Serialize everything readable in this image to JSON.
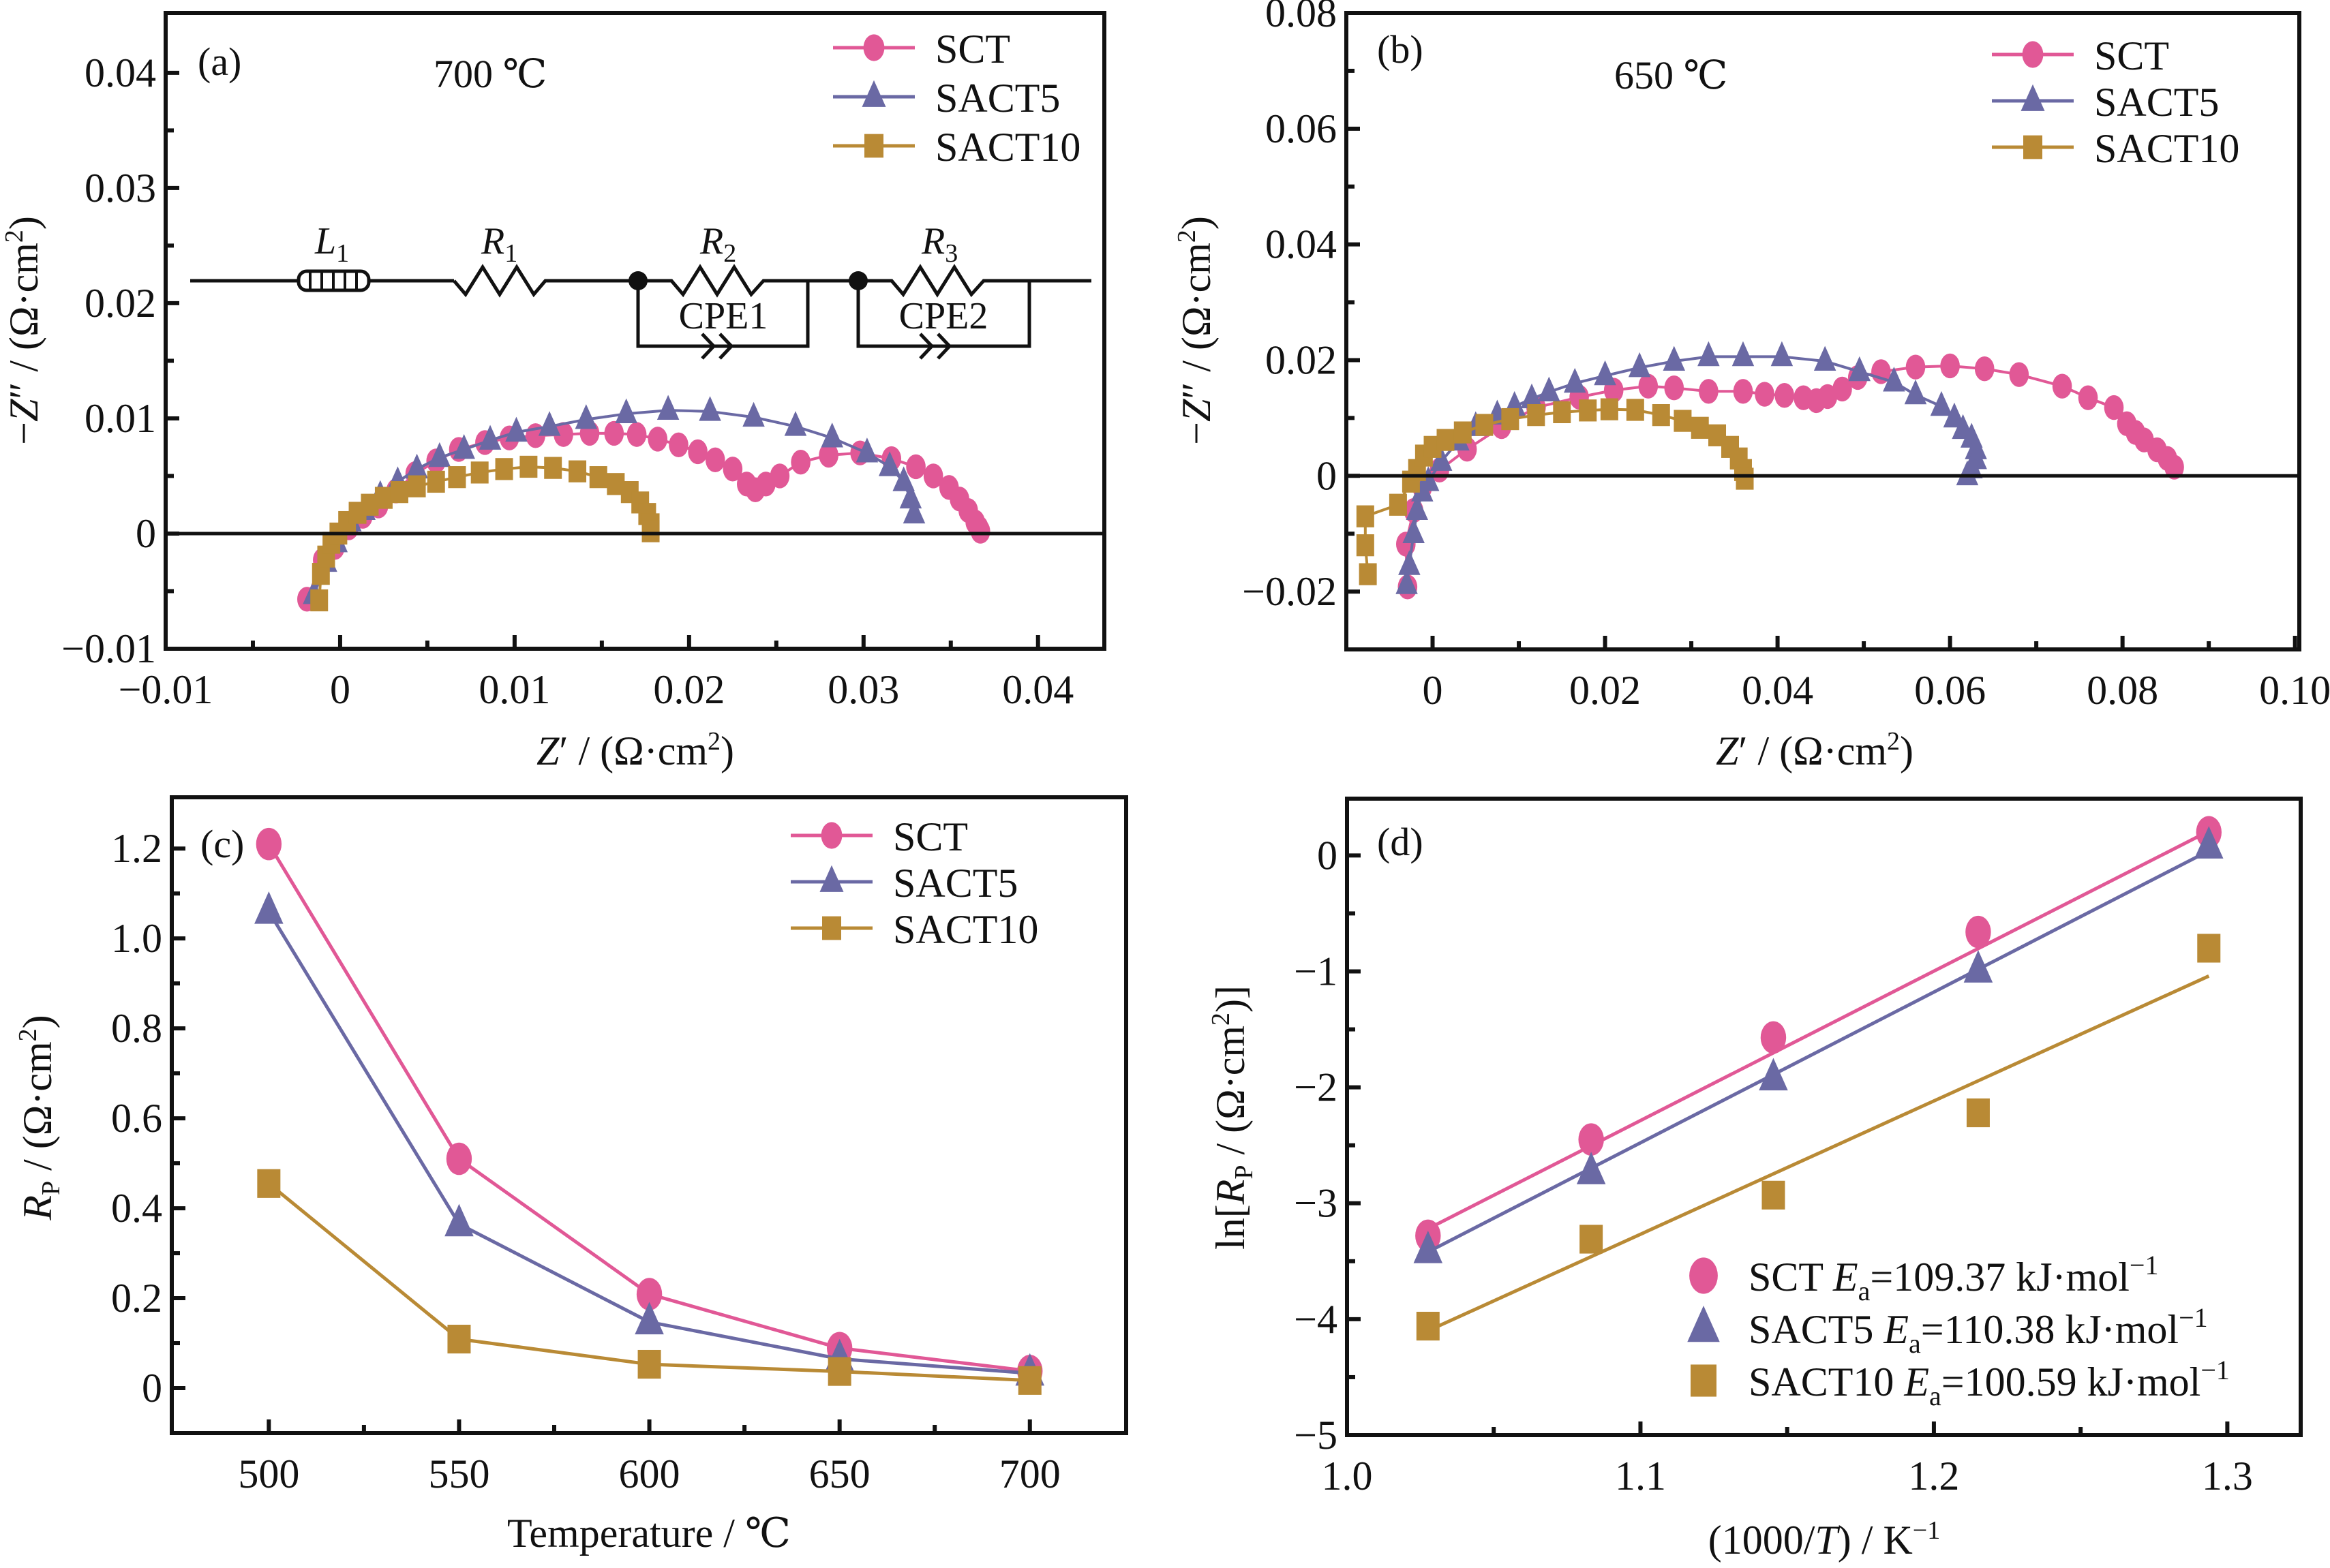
{
  "figure": {
    "background": "#ffffff",
    "series_colors": {
      "SCT": "#E15896",
      "SACT5": "#6A69A4",
      "SACT10": "#B98A35"
    },
    "series_markers": {
      "SCT": "circle",
      "SACT5": "triangle",
      "SACT10": "square"
    }
  },
  "chart_data": [
    {
      "id": "a",
      "type": "scatter",
      "panel_label": "(a)",
      "annotation": "700 ℃",
      "xlabel": "Z′ / (Ω·cm²)",
      "ylabel": "−Z″ / (Ω·cm²)",
      "xlim": [
        -0.01,
        0.0438
      ],
      "ylim": [
        -0.01,
        0.0452
      ],
      "xticks": [
        -0.01,
        0,
        0.01,
        0.02,
        0.03,
        0.04
      ],
      "xtick_labels": [
        "−0.01",
        "0",
        "0.01",
        "0.02",
        "0.03",
        "0.04"
      ],
      "yticks": [
        -0.01,
        0,
        0.01,
        0.02,
        0.03,
        0.04
      ],
      "ytick_labels": [
        "−0.01",
        "0",
        "0.01",
        "0.02",
        "0.03",
        "0.04"
      ],
      "zero_line": true,
      "grid": false,
      "legend_position": "top-right",
      "legend_style": "line-marker",
      "inset_circuit": {
        "elements": [
          "L1",
          "R1",
          "R2",
          "CPE1",
          "R3",
          "CPE2"
        ],
        "labels": {
          "L1": "L",
          "L1_sub": "1",
          "R1": "R",
          "R1_sub": "1",
          "R2": "R",
          "R2_sub": "2",
          "R3": "R",
          "R3_sub": "3",
          "CPE1": "CPE1",
          "CPE2": "CPE2"
        },
        "topology": "L1 – R1 – (R2 ∥ CPE1) – (R3 ∥ CPE2)"
      },
      "series": [
        {
          "name": "SCT",
          "connected": true,
          "points": [
            [
              -0.0019,
              -0.0057
            ],
            [
              -0.001,
              -0.0023
            ],
            [
              -0.0003,
              -0.0012
            ],
            [
              0.0005,
              0.0005
            ],
            [
              0.0013,
              0.0015
            ],
            [
              0.0022,
              0.0024
            ],
            [
              0.0032,
              0.0037
            ],
            [
              0.0043,
              0.0052
            ],
            [
              0.0055,
              0.0063
            ],
            [
              0.0068,
              0.0073
            ],
            [
              0.0083,
              0.0079
            ],
            [
              0.0097,
              0.0083
            ],
            [
              0.0112,
              0.0085
            ],
            [
              0.0128,
              0.0086
            ],
            [
              0.0143,
              0.0087
            ],
            [
              0.0157,
              0.0087
            ],
            [
              0.017,
              0.0086
            ],
            [
              0.0182,
              0.0082
            ],
            [
              0.0194,
              0.0077
            ],
            [
              0.0205,
              0.0071
            ],
            [
              0.0215,
              0.0064
            ],
            [
              0.0225,
              0.0056
            ],
            [
              0.0233,
              0.0043
            ],
            [
              0.0238,
              0.0038
            ],
            [
              0.0244,
              0.0043
            ],
            [
              0.0252,
              0.005
            ],
            [
              0.0264,
              0.0062
            ],
            [
              0.028,
              0.0068
            ],
            [
              0.0298,
              0.007
            ],
            [
              0.0316,
              0.0065
            ],
            [
              0.033,
              0.0058
            ],
            [
              0.034,
              0.005
            ],
            [
              0.0349,
              0.004
            ],
            [
              0.0355,
              0.003
            ],
            [
              0.036,
              0.002
            ],
            [
              0.0364,
              0.001
            ],
            [
              0.0366,
              0.0005
            ],
            [
              0.0367,
              0.0002
            ]
          ]
        },
        {
          "name": "SACT5",
          "connected": true,
          "points": [
            [
              -0.0015,
              -0.0053
            ],
            [
              -0.0008,
              -0.0025
            ],
            [
              -0.0002,
              -0.0008
            ],
            [
              0.0006,
              0.001
            ],
            [
              0.0014,
              0.002
            ],
            [
              0.0023,
              0.0033
            ],
            [
              0.0033,
              0.0045
            ],
            [
              0.0044,
              0.0056
            ],
            [
              0.0057,
              0.0066
            ],
            [
              0.0071,
              0.0073
            ],
            [
              0.0086,
              0.0081
            ],
            [
              0.0101,
              0.0088
            ],
            [
              0.012,
              0.0093
            ],
            [
              0.0141,
              0.0099
            ],
            [
              0.0164,
              0.0104
            ],
            [
              0.0188,
              0.0107
            ],
            [
              0.0212,
              0.0106
            ],
            [
              0.0237,
              0.0101
            ],
            [
              0.0261,
              0.0093
            ],
            [
              0.0282,
              0.0083
            ],
            [
              0.0302,
              0.007
            ],
            [
              0.0315,
              0.0058
            ],
            [
              0.0323,
              0.0045
            ],
            [
              0.0327,
              0.003
            ],
            [
              0.0329,
              0.0017
            ]
          ]
        },
        {
          "name": "SACT10",
          "connected": true,
          "points": [
            [
              -0.0012,
              -0.0058
            ],
            [
              -0.0011,
              -0.0035
            ],
            [
              -0.0008,
              -0.002
            ],
            [
              -0.0005,
              -0.0008
            ],
            [
              -0.0001,
              0.0
            ],
            [
              0.0004,
              0.001
            ],
            [
              0.001,
              0.0018
            ],
            [
              0.0017,
              0.0025
            ],
            [
              0.0025,
              0.0031
            ],
            [
              0.0034,
              0.0036
            ],
            [
              0.0044,
              0.0041
            ],
            [
              0.0055,
              0.0045
            ],
            [
              0.0067,
              0.0049
            ],
            [
              0.008,
              0.0053
            ],
            [
              0.0094,
              0.0056
            ],
            [
              0.0108,
              0.0058
            ],
            [
              0.0122,
              0.0057
            ],
            [
              0.0136,
              0.0054
            ],
            [
              0.0148,
              0.0049
            ],
            [
              0.0158,
              0.0043
            ],
            [
              0.0166,
              0.0036
            ],
            [
              0.0172,
              0.0027
            ],
            [
              0.0176,
              0.0017
            ],
            [
              0.0178,
              0.0008
            ],
            [
              0.0178,
              0.0002
            ]
          ]
        }
      ]
    },
    {
      "id": "b",
      "type": "scatter",
      "panel_label": "(b)",
      "annotation": "650 ℃",
      "xlabel": "Z′ / (Ω·cm²)",
      "ylabel": "−Z″ / (Ω·cm²)",
      "xlim": [
        -0.01,
        0.1005
      ],
      "ylim": [
        -0.03,
        0.08
      ],
      "xticks": [
        0,
        0.02,
        0.04,
        0.06,
        0.08,
        0.1
      ],
      "xtick_labels": [
        "0",
        "0.02",
        "0.04",
        "0.06",
        "0.08",
        "0.10"
      ],
      "yticks": [
        -0.02,
        0,
        0.02,
        0.04,
        0.06,
        0.08
      ],
      "ytick_labels": [
        "−0.02",
        "0",
        "0.02",
        "0.04",
        "0.06",
        "0.08"
      ],
      "zero_line": true,
      "grid": false,
      "legend_position": "top-right",
      "legend_style": "line-marker",
      "series": [
        {
          "name": "SCT",
          "connected": true,
          "points": [
            [
              -0.0029,
              -0.0192
            ],
            [
              -0.0031,
              -0.0118
            ],
            [
              -0.0022,
              -0.006
            ],
            [
              -0.0012,
              -0.002
            ],
            [
              0.0008,
              0.001
            ],
            [
              0.004,
              0.0046
            ],
            [
              0.008,
              0.0085
            ],
            [
              0.012,
              0.0118
            ],
            [
              0.017,
              0.0136
            ],
            [
              0.021,
              0.0148
            ],
            [
              0.025,
              0.0155
            ],
            [
              0.028,
              0.0152
            ],
            [
              0.032,
              0.0146
            ],
            [
              0.036,
              0.0146
            ],
            [
              0.0385,
              0.0141
            ],
            [
              0.0408,
              0.0139
            ],
            [
              0.043,
              0.0135
            ],
            [
              0.0445,
              0.013
            ],
            [
              0.0458,
              0.0137
            ],
            [
              0.0475,
              0.015
            ],
            [
              0.0493,
              0.017
            ],
            [
              0.052,
              0.018
            ],
            [
              0.056,
              0.0188
            ],
            [
              0.06,
              0.019
            ],
            [
              0.064,
              0.0185
            ],
            [
              0.068,
              0.0175
            ],
            [
              0.073,
              0.0155
            ],
            [
              0.076,
              0.0135
            ],
            [
              0.079,
              0.0118
            ],
            [
              0.0805,
              0.009
            ],
            [
              0.0815,
              0.0075
            ],
            [
              0.0825,
              0.0062
            ],
            [
              0.084,
              0.0045
            ],
            [
              0.0852,
              0.003
            ],
            [
              0.086,
              0.0015
            ]
          ]
        },
        {
          "name": "SACT5",
          "connected": true,
          "points": [
            [
              -0.003,
              -0.0188
            ],
            [
              -0.0027,
              -0.0155
            ],
            [
              -0.0022,
              -0.01
            ],
            [
              -0.0018,
              -0.006
            ],
            [
              -0.0012,
              -0.0028
            ],
            [
              -0.0005,
              -0.001
            ],
            [
              0.001,
              0.0025
            ],
            [
              0.003,
              0.006
            ],
            [
              0.005,
              0.0085
            ],
            [
              0.0075,
              0.0105
            ],
            [
              0.0095,
              0.012
            ],
            [
              0.0115,
              0.0133
            ],
            [
              0.0135,
              0.0145
            ],
            [
              0.0165,
              0.016
            ],
            [
              0.02,
              0.0173
            ],
            [
              0.024,
              0.0187
            ],
            [
              0.028,
              0.0198
            ],
            [
              0.032,
              0.0206
            ],
            [
              0.036,
              0.0206
            ],
            [
              0.0405,
              0.0206
            ],
            [
              0.0455,
              0.0198
            ],
            [
              0.0495,
              0.018
            ],
            [
              0.0535,
              0.0162
            ],
            [
              0.056,
              0.014
            ],
            [
              0.059,
              0.012
            ],
            [
              0.0605,
              0.01
            ],
            [
              0.0615,
              0.008
            ],
            [
              0.0625,
              0.0065
            ],
            [
              0.063,
              0.0045
            ],
            [
              0.063,
              0.0028
            ],
            [
              0.0625,
              0.0012
            ],
            [
              0.062,
              0.0
            ]
          ]
        },
        {
          "name": "SACT10",
          "connected": true,
          "points": [
            [
              -0.0075,
              -0.017
            ],
            [
              -0.0078,
              -0.012
            ],
            [
              -0.0078,
              -0.007
            ],
            [
              -0.004,
              -0.005
            ],
            [
              -0.0025,
              -0.001
            ],
            [
              -0.0018,
              0.001
            ],
            [
              -0.001,
              0.0035
            ],
            [
              0.0,
              0.005
            ],
            [
              0.0015,
              0.0062
            ],
            [
              0.0035,
              0.0075
            ],
            [
              0.006,
              0.0088
            ],
            [
              0.009,
              0.0098
            ],
            [
              0.012,
              0.0105
            ],
            [
              0.015,
              0.011
            ],
            [
              0.018,
              0.0113
            ],
            [
              0.0205,
              0.0115
            ],
            [
              0.0235,
              0.0114
            ],
            [
              0.0265,
              0.0105
            ],
            [
              0.029,
              0.0095
            ],
            [
              0.031,
              0.0083
            ],
            [
              0.033,
              0.007
            ],
            [
              0.0345,
              0.005
            ],
            [
              0.0355,
              0.003
            ],
            [
              0.036,
              0.001
            ],
            [
              0.0362,
              -0.0005
            ]
          ]
        }
      ]
    },
    {
      "id": "c",
      "type": "line",
      "panel_label": "(c)",
      "xlabel": "Temperature / ℃",
      "ylabel": "R_P / (Ω·cm²)",
      "ylabel_parts": {
        "symbol": "R",
        "sub": "P",
        "unit": " / (Ω·cm",
        "sup": "2",
        "close": ")"
      },
      "xlim": [
        474.5,
        725.3
      ],
      "ylim": [
        -0.1,
        1.314
      ],
      "categories": [
        500,
        550,
        600,
        650,
        700
      ],
      "xticks": [
        500,
        550,
        600,
        650,
        700
      ],
      "xtick_labels": [
        "500",
        "550",
        "600",
        "650",
        "700"
      ],
      "yticks": [
        0,
        0.2,
        0.4,
        0.6,
        0.8,
        1.0,
        1.2
      ],
      "ytick_labels": [
        "0",
        "0.2",
        "0.4",
        "0.6",
        "0.8",
        "1.0",
        "1.2"
      ],
      "grid": false,
      "legend_position": "top-right",
      "legend_style": "line-marker",
      "series": [
        {
          "name": "SCT",
          "values": [
            1.21,
            0.51,
            0.209,
            0.089,
            0.038
          ]
        },
        {
          "name": "SACT5",
          "values": [
            1.06,
            0.365,
            0.147,
            0.065,
            0.033
          ]
        },
        {
          "name": "SACT10",
          "values": [
            0.455,
            0.109,
            0.053,
            0.037,
            0.017
          ]
        }
      ]
    },
    {
      "id": "d",
      "type": "scatter",
      "panel_label": "(d)",
      "xlabel": "(1000/T) / K⁻¹",
      "ylabel": "ln[R_P / (Ω·cm²)]",
      "xlim": [
        1.0,
        1.325
      ],
      "ylim": [
        -5,
        0.49
      ],
      "xticks": [
        1.0,
        1.1,
        1.2,
        1.3
      ],
      "xtick_labels": [
        "1.0",
        "1.1",
        "1.2",
        "1.3"
      ],
      "yticks": [
        -5,
        -4,
        -3,
        -2,
        -1,
        0
      ],
      "ytick_labels": [
        "−5",
        "−4",
        "−3",
        "−2",
        "−1",
        "0"
      ],
      "grid": false,
      "legend_position": "bottom-right",
      "legend_style": "marker-only",
      "x": [
        1.0276,
        1.0832,
        1.1453,
        1.2151,
        1.2937
      ],
      "series": [
        {
          "name": "SCT",
          "legend": "SCT E_a=109.37 kJ·mol⁻¹",
          "ea_label": "SCT ",
          "ea_value": "=109.37 kJ·mol",
          "values": [
            -3.28,
            -2.45,
            -1.57,
            -0.66,
            0.2
          ],
          "fit": [
            [
              1.0276,
              -3.22
            ],
            [
              1.2937,
              0.21
            ]
          ]
        },
        {
          "name": "SACT5",
          "legend": "SACT5 E_a=110.38 kJ·mol⁻¹",
          "ea_label": "SACT5 ",
          "ea_value": "=110.38 kJ·mol",
          "values": [
            -3.41,
            -2.73,
            -1.92,
            -0.99,
            0.08
          ],
          "fit": [
            [
              1.0276,
              -3.42
            ],
            [
              1.2937,
              0.04
            ]
          ]
        },
        {
          "name": "SACT10",
          "legend": "SACT10 E_a=100.59 kJ·mol⁻¹",
          "ea_label": "SACT10 ",
          "ea_value": "=100.59 kJ·mol",
          "values": [
            -4.06,
            -3.31,
            -2.93,
            -2.22,
            -0.8
          ],
          "fit": [
            [
              1.0276,
              -4.1
            ],
            [
              1.2937,
              -1.04
            ]
          ]
        }
      ]
    }
  ]
}
